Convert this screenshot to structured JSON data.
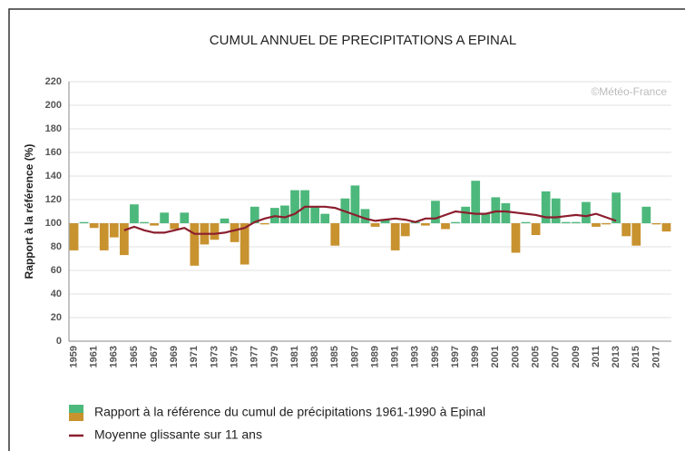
{
  "chart_data": {
    "type": "bar",
    "title": "CUMUL ANNUEL DE PRECIPITATIONS A EPINAL",
    "y_label": "Rapport à la référence (%)",
    "watermark": "©Météo-France",
    "categories": [
      "1959",
      null,
      "1961",
      null,
      "1963",
      null,
      "1965",
      null,
      "1967",
      null,
      "1969",
      null,
      "1971",
      null,
      "1973",
      null,
      "1975",
      null,
      "1977",
      null,
      "1979",
      null,
      "1981",
      null,
      "1983",
      null,
      "1985",
      null,
      "1987",
      null,
      "1989",
      null,
      "1991",
      null,
      "1993",
      null,
      "1995",
      null,
      "1997",
      null,
      "1999",
      null,
      "2001",
      null,
      "2003",
      null,
      "2005",
      null,
      "2007",
      null,
      "2009",
      null,
      "2011",
      null,
      "2013",
      null,
      "2015",
      null,
      "2017",
      null
    ],
    "baseline": 100,
    "series": [
      {
        "name": "Rapport à la référence du cumul de précipitations 1961-1990 à Epinal",
        "above_color": "#4db87c",
        "below_color": "#c8922f",
        "values": [
          77,
          101,
          96,
          77,
          88,
          73,
          116,
          101,
          98,
          109,
          95,
          109,
          64,
          82,
          86,
          104,
          84,
          65,
          114,
          99,
          113,
          115,
          128,
          128,
          114,
          108,
          81,
          121,
          132,
          112,
          97,
          103,
          77,
          89,
          101,
          98,
          119,
          95,
          101,
          114,
          136,
          108,
          122,
          117,
          75,
          101,
          90,
          127,
          121,
          101,
          101,
          118,
          97,
          99,
          126,
          89,
          81,
          114,
          99,
          93
        ]
      },
      {
        "name": "Moyenne glissante sur 11 ans",
        "color": "#8b1e2e",
        "line": true,
        "values": [
          null,
          null,
          null,
          null,
          null,
          94,
          97,
          94,
          92,
          92,
          94,
          96,
          91,
          91,
          91,
          92,
          94,
          96,
          101,
          104,
          106,
          105,
          108,
          114,
          114,
          114,
          113,
          110,
          107,
          104,
          102,
          103,
          104,
          103,
          101,
          104,
          104,
          107,
          110,
          109,
          108,
          108,
          110,
          110,
          109,
          108,
          107,
          105,
          105,
          106,
          107,
          106,
          108,
          105,
          102,
          null,
          null,
          null,
          null,
          null
        ]
      }
    ],
    "ylim": [
      0,
      220
    ],
    "yticks": [
      0,
      20,
      40,
      60,
      80,
      100,
      120,
      140,
      160,
      180,
      200,
      220
    ],
    "grid": true
  }
}
